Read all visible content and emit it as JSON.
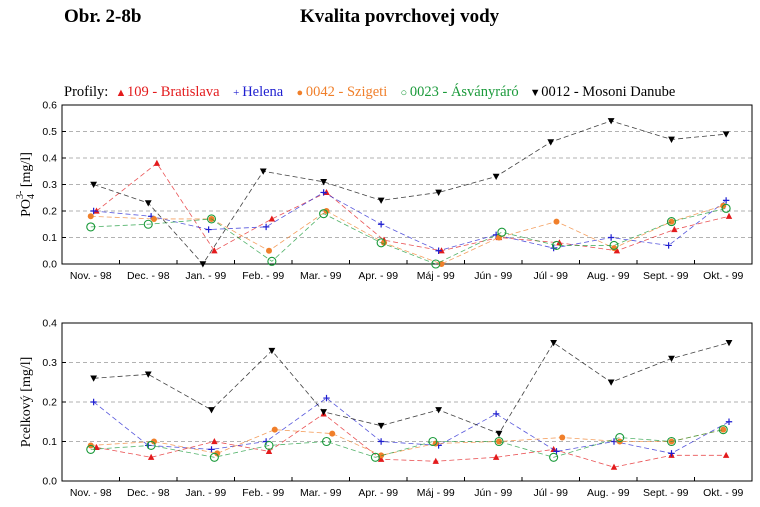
{
  "header": {
    "figure_label": "Obr. 2-8b",
    "title": "Kvalita povrchovej vody"
  },
  "legend": {
    "label": "Profily:",
    "items": [
      {
        "symbol": "triangle-up",
        "glyph": "▲",
        "text": "109 - Bratislava",
        "color": "#e31a1c"
      },
      {
        "symbol": "plus",
        "glyph": "+",
        "text": "Helena",
        "color": "#1f1fd0"
      },
      {
        "symbol": "filled-circle",
        "glyph": "●",
        "text": "0042 - Szigeti",
        "color": "#f07f2a"
      },
      {
        "symbol": "open-circle",
        "glyph": "○",
        "text": "0023 - Ásványráró",
        "color": "#1a9a3a"
      },
      {
        "symbol": "triangle-down",
        "glyph": "▼",
        "text": "0012 - Mosoni Danube",
        "color": "#000000"
      }
    ]
  },
  "chart_data": [
    {
      "type": "line",
      "ylabel_main": "PO",
      "ylabel_sub": "4",
      "ylabel_sup": "3-",
      "ylabel_rest": " [mg/l]",
      "ylim": [
        0,
        0.6
      ],
      "yticks": [
        "0.0",
        "0.1",
        "0.2",
        "0.3",
        "0.4",
        "0.5",
        "0.6"
      ],
      "categories": [
        "Nov. - 98",
        "Dec. - 98",
        "Jan. - 99",
        "Feb. - 99",
        "Mar. - 99",
        "Apr. - 99",
        "Máj - 99",
        "Jún - 99",
        "Júl - 99",
        "Aug. - 99",
        "Sept. - 99",
        "Okt. - 99"
      ],
      "grid": "horizontal-dashed",
      "series": [
        {
          "name": "109 - Bratislava",
          "x": [
            0.1,
            1.15,
            2.15,
            3.15,
            4.1,
            5.1,
            6.1,
            7.1,
            8.15,
            9.15,
            10.15,
            11.1
          ],
          "values": [
            0.2,
            0.38,
            0.05,
            0.17,
            0.27,
            0.09,
            0.05,
            0.1,
            0.08,
            0.05,
            0.13,
            0.18
          ]
        },
        {
          "name": "Helena",
          "x": [
            0.05,
            1.05,
            2.05,
            3.05,
            4.05,
            5.05,
            6.05,
            7.05,
            8.05,
            9.05,
            10.05,
            11.05
          ],
          "values": [
            0.2,
            0.18,
            0.13,
            0.14,
            0.27,
            0.15,
            0.05,
            0.11,
            0.06,
            0.1,
            0.07,
            0.24
          ]
        },
        {
          "name": "0042 - Szigeti",
          "x": [
            0.0,
            1.1,
            2.1,
            3.1,
            4.1,
            5.1,
            6.1,
            7.1,
            8.1,
            9.1,
            10.1,
            11.0
          ],
          "values": [
            0.18,
            0.17,
            0.17,
            0.05,
            0.2,
            0.08,
            0.0,
            0.1,
            0.16,
            0.06,
            0.16,
            0.22
          ]
        },
        {
          "name": "0023 - Ásványráró",
          "x": [
            0.0,
            1.0,
            2.1,
            3.15,
            4.05,
            5.05,
            6.0,
            7.15,
            8.1,
            9.1,
            10.1,
            11.05
          ],
          "values": [
            0.14,
            0.15,
            0.17,
            0.01,
            0.19,
            0.08,
            0.0,
            0.12,
            0.07,
            0.07,
            0.16,
            0.21
          ]
        },
        {
          "name": "0012 - Mosoni Danube",
          "x": [
            0.05,
            1.0,
            1.95,
            3.0,
            4.05,
            5.05,
            6.05,
            7.05,
            8.0,
            9.05,
            10.1,
            11.05
          ],
          "values": [
            0.3,
            0.23,
            0.0,
            0.35,
            0.31,
            0.24,
            0.27,
            0.33,
            0.46,
            0.54,
            0.47,
            0.49
          ]
        }
      ]
    },
    {
      "type": "line",
      "ylabel_main": "Pcelkový [mg/l]",
      "ylim": [
        0,
        0.4
      ],
      "yticks": [
        "0.0",
        "0.1",
        "0.2",
        "0.3",
        "0.4"
      ],
      "categories": [
        "Nov. - 98",
        "Dec. - 98",
        "Jan. - 99",
        "Feb. - 99",
        "Mar. - 99",
        "Apr. - 99",
        "Máj - 99",
        "Jún - 99",
        "Júl - 99",
        "Aug. - 99",
        "Sept. - 99",
        "Okt. - 99"
      ],
      "grid": "horizontal-dashed",
      "series": [
        {
          "name": "109 - Bratislava",
          "x": [
            0.1,
            1.05,
            2.15,
            3.1,
            4.05,
            5.05,
            6.0,
            7.05,
            8.05,
            9.1,
            10.1,
            11.05
          ],
          "values": [
            0.085,
            0.06,
            0.1,
            0.075,
            0.17,
            0.055,
            0.05,
            0.06,
            0.08,
            0.035,
            0.065,
            0.065
          ]
        },
        {
          "name": "Helena",
          "x": [
            0.05,
            1.0,
            2.1,
            3.05,
            4.1,
            5.05,
            6.05,
            7.05,
            8.1,
            9.1,
            10.1,
            11.1
          ],
          "values": [
            0.2,
            0.09,
            0.08,
            0.1,
            0.21,
            0.1,
            0.09,
            0.17,
            0.075,
            0.1,
            0.07,
            0.15
          ]
        },
        {
          "name": "0042 - Szigeti",
          "x": [
            0.0,
            1.1,
            2.2,
            3.2,
            4.2,
            5.05,
            6.0,
            7.1,
            8.2,
            9.2,
            10.1,
            11.0
          ],
          "values": [
            0.09,
            0.1,
            0.07,
            0.13,
            0.12,
            0.065,
            0.095,
            0.1,
            0.11,
            0.1,
            0.1,
            0.13
          ]
        },
        {
          "name": "0023 - Ásványráró",
          "x": [
            0.0,
            1.05,
            2.15,
            3.1,
            4.1,
            4.95,
            5.95,
            7.1,
            8.05,
            9.2,
            10.1,
            11.0
          ],
          "values": [
            0.08,
            0.09,
            0.06,
            0.09,
            0.1,
            0.06,
            0.1,
            0.1,
            0.06,
            0.11,
            0.1,
            0.13
          ]
        },
        {
          "name": "0012 - Mosoni Danube",
          "x": [
            0.05,
            1.0,
            2.1,
            3.15,
            4.05,
            5.05,
            6.05,
            7.1,
            8.05,
            9.05,
            10.1,
            11.1
          ],
          "values": [
            0.26,
            0.27,
            0.18,
            0.33,
            0.175,
            0.14,
            0.18,
            0.12,
            0.35,
            0.25,
            0.31,
            0.35
          ]
        }
      ]
    }
  ]
}
